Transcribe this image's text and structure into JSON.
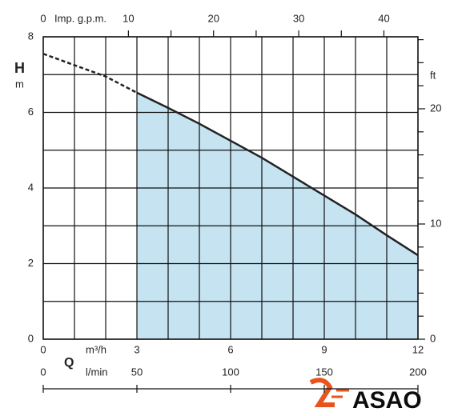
{
  "chart_data": {
    "type": "line",
    "y_label": "H",
    "y_unit": "m",
    "y2_unit": "ft",
    "x_name": "Q",
    "x_unit": "m³/h",
    "x2_unit": "Imp. g.p.m.",
    "x3_unit": "l/min",
    "xlim": [
      0,
      12
    ],
    "xticks": [
      0,
      3,
      6,
      9,
      12
    ],
    "xminor": [
      1,
      2,
      4,
      5,
      7,
      8,
      10,
      11
    ],
    "ylim": [
      0,
      8
    ],
    "yticks": [
      0,
      2,
      4,
      6,
      8
    ],
    "yminor": [
      1,
      3,
      5,
      7
    ],
    "y2lim": [
      0,
      26.25
    ],
    "y2ticks": [
      0,
      10,
      20
    ],
    "y2minor": [
      2,
      4,
      6,
      8,
      12,
      14,
      16,
      18,
      22,
      24,
      26
    ],
    "x2lim": [
      0,
      44
    ],
    "x2ticks": [
      0,
      10,
      20,
      30,
      40
    ],
    "x2minor": [
      15,
      25,
      35
    ],
    "x3lim": [
      0,
      200
    ],
    "x3ticks": [
      0,
      50,
      100,
      150,
      200
    ],
    "grid": true,
    "series": [
      {
        "style": "dashed",
        "color": "#222",
        "x": [
          0,
          1,
          2,
          3
        ],
        "values": [
          7.55,
          7.25,
          6.95,
          6.52
        ]
      },
      {
        "style": "solid",
        "color": "#222",
        "fill": "#c5e3f0",
        "x": [
          3,
          4,
          5,
          6,
          7,
          8,
          9,
          10,
          11,
          12
        ],
        "values": [
          6.52,
          6.12,
          5.7,
          5.25,
          4.8,
          4.3,
          3.8,
          3.3,
          2.75,
          2.22
        ]
      }
    ]
  },
  "logo": "ASAO"
}
